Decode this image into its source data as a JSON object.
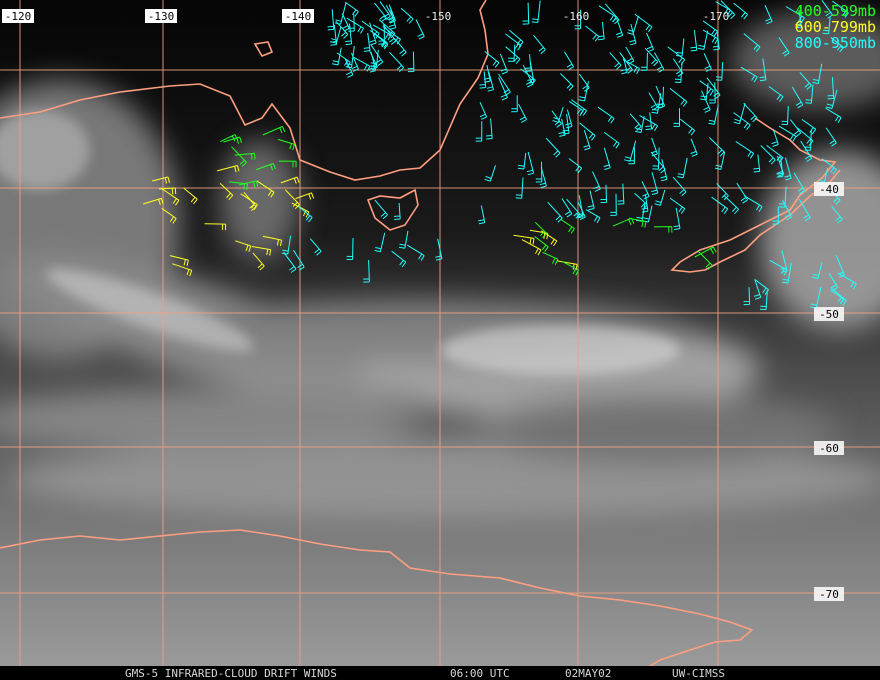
{
  "longitude_labels": [
    "-120",
    "-130",
    "-140",
    "-150",
    "-160",
    "-170"
  ],
  "latitude_labels": [
    "-40",
    "-50",
    "-60",
    "-70"
  ],
  "legend": [
    {
      "label": "400-599mb",
      "color": "#22ff22"
    },
    {
      "label": "600-799mb",
      "color": "#ffff22"
    },
    {
      "label": "800-950mb",
      "color": "#22ffff"
    }
  ],
  "footer": {
    "product": "GMS-5 INFRARED-CLOUD DRIFT WINDS",
    "time": "06:00 UTC",
    "date": "02MAY02",
    "source": "UW-CIMSS"
  }
}
